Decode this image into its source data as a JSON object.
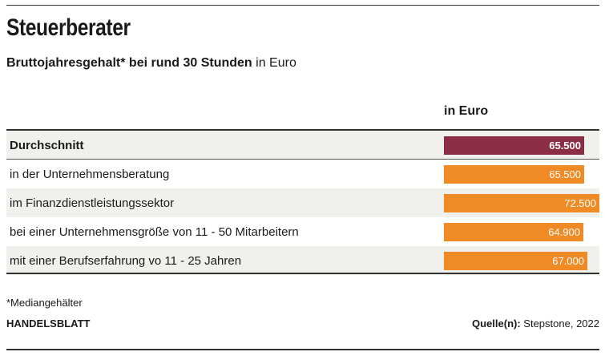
{
  "title": "Steuerberater",
  "subtitle": {
    "bold": "Bruttojahresgehalt* bei rund 30 Stunden",
    "normal": "in Euro"
  },
  "column_header": "in Euro",
  "colors": {
    "average_bar": "#8b2e45",
    "bar": "#f08a24"
  },
  "chart_data": {
    "type": "bar",
    "orientation": "horizontal",
    "categories": [
      "Durchschnitt",
      "in der Unternehmensberatung",
      "im Finanzdienstleistungssektor",
      "bei einer Unternehmensgröße von 11 - 50 Mitarbeitern",
      "mit einer Berufserfahrung vo 11 - 25 Jahren"
    ],
    "values": [
      65500,
      65500,
      72500,
      64900,
      67000
    ],
    "value_labels": [
      "65.500",
      "65.500",
      "72.500",
      "64.900",
      "67.000"
    ],
    "xlim": [
      0,
      72500
    ]
  },
  "footnote": "*Mediangehälter",
  "brand": "HANDELSBLATT",
  "source": {
    "label": "Quelle(n):",
    "text": "Stepstone, 2022"
  }
}
